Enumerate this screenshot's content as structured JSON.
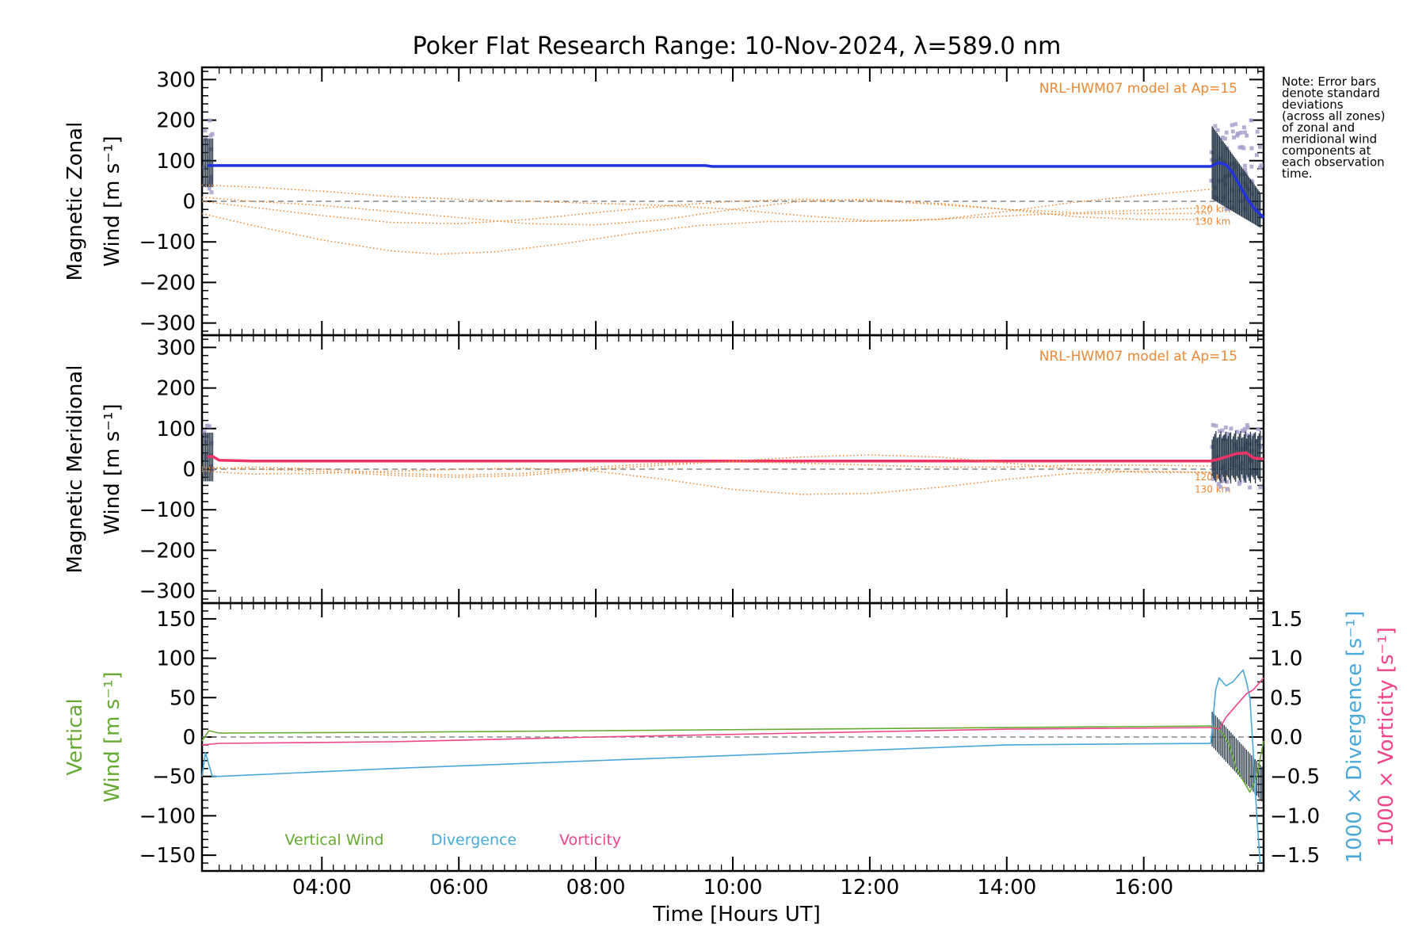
{
  "chart_data": {
    "type": "line",
    "title": "Poker Flat Research Range: 10-Nov-2024, λ=589.0 nm",
    "xlabel": "Time [Hours UT]",
    "xlim": [
      2.25,
      17.75
    ],
    "x_ticks": [
      4,
      6,
      8,
      10,
      12,
      14,
      16
    ],
    "x_tick_labels": [
      "04:00",
      "06:00",
      "08:00",
      "10:00",
      "12:00",
      "14:00",
      "16:00"
    ],
    "note": [
      "Note: Error bars",
      "denote standard",
      "deviations",
      "(across all zones)",
      "of zonal and",
      "meridional wind",
      "components at",
      "each observation",
      "time."
    ],
    "colors": {
      "zonal": "#2233dd",
      "meridional": "#ee3366",
      "model": "#ee8833",
      "vertical": "#66aa33",
      "divergence": "#4aa8d8",
      "vorticity": "#ee4488",
      "scatter": "#a8a0cc",
      "errorbar": "#223344"
    },
    "panels": [
      {
        "id": "zonal",
        "ylabel_line1": "Magnetic Zonal",
        "ylabel_line2": "Wind [m s⁻¹]",
        "ylim": [
          -330,
          330
        ],
        "y_ticks": [
          -300,
          -200,
          -100,
          0,
          100,
          200,
          300
        ],
        "y_tick_labels": [
          "−300",
          "−200",
          "−100",
          "0",
          "100",
          "200",
          "300"
        ],
        "model_label": "NRL-HWM07 model at Ap=15",
        "height_labels": [
          "120 km",
          "130 km"
        ],
        "series": [
          {
            "name": "Magnetic Zonal Wind",
            "x": [
              2.33,
              2.45,
              3,
              5,
              7,
              9.6,
              9.7,
              12,
              14,
              16,
              16.98,
              17.05,
              17.1,
              17.2,
              17.3,
              17.4,
              17.5,
              17.6,
              17.75
            ],
            "y": [
              88,
              88,
              88,
              88,
              88,
              88,
              86,
              86,
              86,
              86,
              86,
              92,
              95,
              90,
              70,
              40,
              10,
              -15,
              -40
            ]
          },
          {
            "name": "NRL-HWM07 120 km",
            "x": [
              2.25,
              3,
              4,
              5,
              5.7,
              6.5,
              7.5,
              8.5,
              9.5,
              10.5,
              11.5,
              12.5,
              13.5,
              14.5,
              15.5,
              16.5,
              17.0
            ],
            "y": [
              -30,
              -60,
              -95,
              -122,
              -130,
              -125,
              -105,
              -80,
              -60,
              -50,
              -50,
              -48,
              -40,
              -32,
              -30,
              -30,
              -30
            ]
          },
          {
            "name": "NRL-HWM07 130 km",
            "x": [
              2.25,
              3,
              4,
              5,
              6,
              7,
              8,
              9,
              10,
              11,
              12,
              13,
              14,
              15,
              16,
              17.0
            ],
            "y": [
              0,
              -15,
              -35,
              -52,
              -55,
              -45,
              -28,
              -12,
              0,
              5,
              2,
              -8,
              -20,
              -28,
              -22,
              -15
            ]
          },
          {
            "name": "NRL-HWM07 model (a)",
            "x": [
              2.25,
              3,
              4,
              5,
              6,
              7,
              8,
              9,
              10,
              11,
              12,
              13,
              14,
              15,
              16,
              17.0
            ],
            "y": [
              40,
              35,
              25,
              12,
              5,
              0,
              -5,
              -10,
              -20,
              -35,
              -48,
              -45,
              -25,
              -2,
              15,
              30
            ]
          },
          {
            "name": "NRL-HWM07 model (b)",
            "x": [
              2.25,
              3,
              4,
              5,
              6,
              7,
              8,
              9,
              10,
              11,
              12,
              13,
              14,
              15,
              16,
              17.0
            ],
            "y": [
              10,
              0,
              -10,
              -25,
              -40,
              -55,
              -58,
              -45,
              -20,
              0,
              5,
              -5,
              -20,
              -38,
              -45,
              -45
            ]
          }
        ]
      },
      {
        "id": "meridional",
        "ylabel_line1": "Magnetic Meridional",
        "ylabel_line2": "Wind [m s⁻¹]",
        "ylim": [
          -330,
          330
        ],
        "y_ticks": [
          -300,
          -200,
          -100,
          0,
          100,
          200,
          300
        ],
        "y_tick_labels": [
          "−300",
          "−200",
          "−100",
          "0",
          "100",
          "200",
          "300"
        ],
        "model_label": "NRL-HWM07 model at Ap=15",
        "height_labels": [
          "120 km",
          "130 km"
        ],
        "series": [
          {
            "name": "Magnetic Meridional Wind",
            "x": [
              2.33,
              2.4,
              2.5,
              3,
              5,
              7,
              9,
              11,
              13,
              15,
              16.98,
              17.1,
              17.2,
              17.35,
              17.5,
              17.6,
              17.75
            ],
            "y": [
              30,
              32,
              22,
              20,
              20,
              20,
              20,
              20,
              20,
              20,
              20,
              25,
              30,
              38,
              40,
              28,
              25
            ]
          },
          {
            "name": "NRL-HWM07 120 km",
            "x": [
              2.25,
              3,
              4,
              5,
              6,
              7,
              8,
              9,
              10,
              11,
              12,
              13,
              14,
              15,
              16,
              17.0
            ],
            "y": [
              -5,
              -12,
              -10,
              -5,
              0,
              2,
              -5,
              -25,
              -50,
              -62,
              -60,
              -45,
              -25,
              -10,
              -5,
              -8
            ]
          },
          {
            "name": "NRL-HWM07 130 km",
            "x": [
              2.25,
              3,
              4,
              5,
              6,
              7,
              8,
              9,
              10,
              11,
              12,
              13,
              14,
              15,
              16,
              17.0
            ],
            "y": [
              5,
              0,
              -5,
              -15,
              -20,
              -15,
              0,
              10,
              20,
              30,
              35,
              30,
              15,
              0,
              -8,
              -8
            ]
          },
          {
            "name": "NRL-HWM07 model (a)",
            "x": [
              2.25,
              3,
              4,
              5,
              6,
              7,
              8,
              9,
              10,
              11,
              12,
              13,
              14,
              15,
              16,
              17.0
            ],
            "y": [
              0,
              5,
              0,
              -10,
              -15,
              -10,
              5,
              15,
              18,
              15,
              10,
              5,
              5,
              10,
              10,
              8
            ]
          }
        ]
      },
      {
        "id": "vertical",
        "ylabel_line1": "Vertical",
        "ylabel_line2": "Wind [m s⁻¹]",
        "ylim": [
          -170,
          170
        ],
        "y_ticks": [
          -150,
          -100,
          -50,
          0,
          50,
          100,
          150
        ],
        "y_tick_labels": [
          "−150",
          "−100",
          "−50",
          "0",
          "50",
          "100",
          "150"
        ],
        "y2lim": [
          -1.7,
          1.7
        ],
        "y2_ticks": [
          -1.5,
          -1.0,
          -0.5,
          0.0,
          0.5,
          1.0,
          1.5
        ],
        "y2_tick_labels": [
          "−1.5",
          "−1.0",
          "−0.5",
          "0.0",
          "0.5",
          "1.0",
          "1.5"
        ],
        "y2label_a": "1000 × Divergence [s⁻¹]",
        "y2label_b": "1000 × Vorticity [s⁻¹]",
        "legend": [
          "Vertical Wind",
          "Divergence",
          "Vorticity"
        ],
        "series": [
          {
            "name": "Vertical Wind",
            "axis": "left",
            "x": [
              2.25,
              2.35,
              2.5,
              5,
              8,
              11,
              14,
              16.98,
              17.05,
              17.15,
              17.25,
              17.35,
              17.45,
              17.55,
              17.65,
              17.75
            ],
            "y": [
              -5,
              8,
              5,
              6,
              8,
              10,
              12,
              14,
              12,
              5,
              -10,
              -40,
              -55,
              -70,
              -50,
              -5
            ]
          },
          {
            "name": "Divergence",
            "axis": "right",
            "x": [
              2.25,
              2.3,
              2.4,
              2.5,
              5,
              8,
              11,
              14,
              16.98,
              17.05,
              17.1,
              17.2,
              17.3,
              17.4,
              17.45,
              17.5,
              17.55,
              17.6,
              17.65,
              17.7
            ],
            "y": [
              -0.5,
              -0.2,
              -0.5,
              -0.5,
              -0.4,
              -0.3,
              -0.2,
              -0.1,
              -0.08,
              0.6,
              0.75,
              0.65,
              0.7,
              0.8,
              0.85,
              0.7,
              0.5,
              -0.2,
              -1.0,
              -1.6
            ]
          },
          {
            "name": "Vorticity",
            "axis": "right",
            "x": [
              2.25,
              2.5,
              5,
              8,
              11,
              14,
              16.98,
              17.1,
              17.2,
              17.3,
              17.4,
              17.5,
              17.6,
              17.75
            ],
            "y": [
              -0.1,
              -0.08,
              -0.06,
              0.0,
              0.05,
              0.1,
              0.12,
              0.1,
              0.25,
              0.35,
              0.45,
              0.55,
              0.6,
              0.75
            ]
          }
        ]
      }
    ]
  }
}
